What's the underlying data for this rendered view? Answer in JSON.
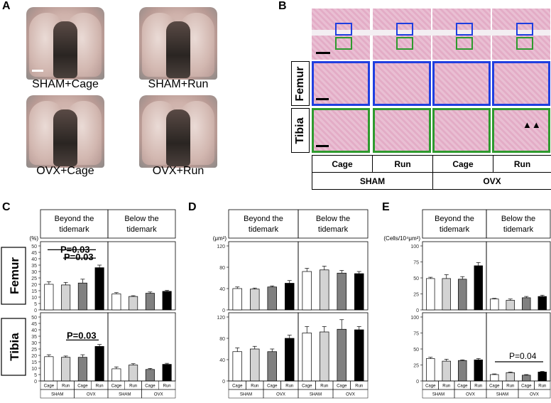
{
  "panels": {
    "a": "A",
    "b": "B",
    "c": "C",
    "d": "D",
    "e": "E"
  },
  "panelA": {
    "captions": [
      "SHAM+Cage",
      "SHAM+Run",
      "OVX+Cage",
      "OVX+Run"
    ]
  },
  "panelB": {
    "row_labels": [
      "Femur",
      "Tibia"
    ],
    "conditions": [
      "Cage",
      "Run",
      "Cage",
      "Run"
    ],
    "groups": [
      "SHAM",
      "OVX"
    ],
    "arrows": "▲▲",
    "colors": {
      "femur_box": "#1f3fe0",
      "tibia_box": "#2e9a2e"
    }
  },
  "chart_data": [
    {
      "panel": "C",
      "type": "bar",
      "row": "Femur",
      "region": "Beyond the tidemark",
      "ylabel": "(%)",
      "ylim": [
        0,
        50
      ],
      "yticks": [
        0,
        5,
        10,
        15,
        20,
        25,
        30,
        35,
        40,
        45,
        50
      ],
      "categories": [
        "SHAM Cage",
        "SHAM Run",
        "OVX Cage",
        "OVX Run"
      ],
      "values": [
        20,
        19.5,
        21,
        33
      ],
      "errors": [
        2,
        2,
        3,
        2
      ],
      "annotations": [
        "P=0.03",
        "P=0.03"
      ]
    },
    {
      "panel": "C",
      "type": "bar",
      "row": "Femur",
      "region": "Below the tidemark",
      "values": [
        12.5,
        10.5,
        13,
        14.5
      ],
      "errors": [
        1,
        0.6,
        1,
        0.8
      ]
    },
    {
      "panel": "C",
      "type": "bar",
      "row": "Tibia",
      "region": "Beyond the tidemark",
      "ylim": [
        0,
        50
      ],
      "values": [
        19,
        18.5,
        18.5,
        27
      ],
      "errors": [
        1.5,
        1,
        2,
        1.5
      ],
      "annotations": [
        "P=0.03"
      ]
    },
    {
      "panel": "C",
      "type": "bar",
      "row": "Tibia",
      "region": "Below the tidemark",
      "values": [
        9.5,
        12.5,
        9,
        13
      ],
      "errors": [
        1.5,
        1,
        0.8,
        0.8
      ]
    },
    {
      "panel": "D",
      "type": "bar",
      "row": "Femur",
      "region": "Beyond the tidemark",
      "ylabel": "(μm²)",
      "ylim": [
        0,
        120
      ],
      "yticks": [
        0,
        40,
        80,
        120
      ],
      "values": [
        40,
        39,
        43,
        50
      ],
      "errors": [
        3,
        2,
        2,
        5
      ]
    },
    {
      "panel": "D",
      "type": "bar",
      "row": "Femur",
      "region": "Below the tidemark",
      "values": [
        72,
        75,
        69,
        68
      ],
      "errors": [
        6,
        7,
        5,
        4
      ]
    },
    {
      "panel": "D",
      "type": "bar",
      "row": "Tibia",
      "region": "Beyond the tidemark",
      "ylim": [
        0,
        120
      ],
      "values": [
        55,
        60,
        55,
        80
      ],
      "errors": [
        7,
        5,
        5,
        6
      ]
    },
    {
      "panel": "D",
      "type": "bar",
      "row": "Tibia",
      "region": "Below the tidemark",
      "values": [
        90,
        92,
        97,
        96
      ],
      "errors": [
        12,
        10,
        18,
        6
      ]
    },
    {
      "panel": "E",
      "type": "bar",
      "row": "Femur",
      "region": "Beyond the tidemark",
      "ylabel": "(Cells/10⁴μm²)",
      "ylim": [
        0,
        100
      ],
      "yticks": [
        0,
        25,
        50,
        75,
        100
      ],
      "values": [
        49,
        49,
        48,
        69
      ],
      "errors": [
        2,
        6,
        4,
        5
      ]
    },
    {
      "panel": "E",
      "type": "bar",
      "row": "Femur",
      "region": "Below the tidemark",
      "values": [
        17,
        15,
        19,
        21
      ],
      "errors": [
        1,
        2,
        2,
        2
      ]
    },
    {
      "panel": "E",
      "type": "bar",
      "row": "Tibia",
      "region": "Beyond the tidemark",
      "ylim": [
        0,
        100
      ],
      "values": [
        35,
        31,
        32,
        33
      ],
      "errors": [
        2,
        3,
        1,
        2
      ]
    },
    {
      "panel": "E",
      "type": "bar",
      "row": "Tibia",
      "region": "Below the tidemark",
      "values": [
        10,
        13,
        9,
        14
      ],
      "errors": [
        1,
        1,
        1,
        1
      ],
      "annotations": [
        "P=0.04"
      ]
    }
  ],
  "chart_text": {
    "beyond": [
      "Beyond the",
      "tidemark"
    ],
    "below": [
      "Below the",
      "tidemark"
    ],
    "rows": [
      "Femur",
      "Tibia"
    ],
    "cats": [
      "Cage",
      "Run",
      "Cage",
      "Run"
    ],
    "groups": [
      "SHAM",
      "OVX"
    ],
    "yunits": [
      "(%)",
      "(μm²)",
      "(Cells/10⁴μm²)"
    ],
    "yticks": [
      [
        "0",
        "5",
        "10",
        "15",
        "20",
        "25",
        "30",
        "35",
        "40",
        "45",
        "50"
      ],
      [
        "0",
        "40",
        "80",
        "120"
      ],
      [
        "0",
        "25",
        "50",
        "75",
        "100"
      ]
    ]
  }
}
